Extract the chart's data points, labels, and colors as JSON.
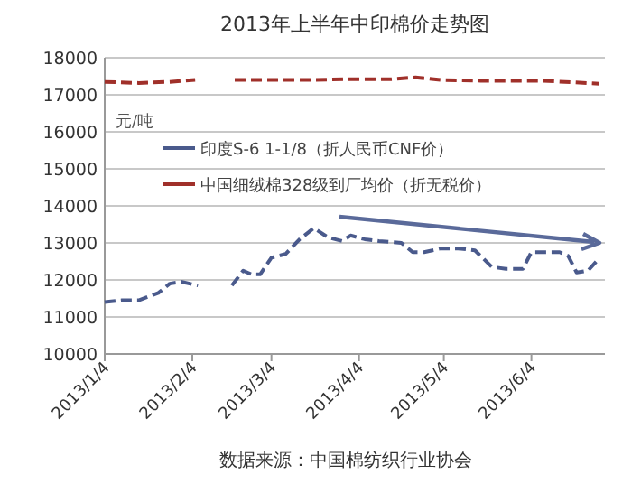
{
  "chart_data": {
    "type": "line",
    "title": "2013年上半年中印棉价走势图",
    "ylabel": "元/吨",
    "annotations": [
      "数据来源：中国棉纺织行业协会"
    ],
    "xlim": [
      "2013-01-04",
      "2013-06-30"
    ],
    "xticks": [
      {
        "value": "2013-01-04",
        "label": "2013/1/4"
      },
      {
        "value": "2013-02-04",
        "label": "2013/2/4"
      },
      {
        "value": "2013-03-04",
        "label": "2013/3/4"
      },
      {
        "value": "2013-04-04",
        "label": "2013/4/4"
      },
      {
        "value": "2013-05-04",
        "label": "2013/5/4"
      },
      {
        "value": "2013-06-04",
        "label": "2013/6/4"
      }
    ],
    "ylim": [
      10000,
      18000
    ],
    "yticks": [
      10000,
      11000,
      12000,
      13000,
      14000,
      15000,
      16000,
      17000,
      18000
    ],
    "grid": "y",
    "legend": "top left",
    "line_style": "dashed",
    "series": [
      {
        "name": "印度S-6 1-1/8（折人民币CNF价）",
        "color": "#4a5a8c",
        "x": [
          "2013-01-04",
          "2013-01-10",
          "2013-01-16",
          "2013-01-23",
          "2013-01-27",
          "2013-01-31",
          "2013-02-06",
          "2013-02-12",
          "2013-02-18",
          "2013-02-22",
          "2013-02-25",
          "2013-02-28",
          "2013-03-04",
          "2013-03-09",
          "2013-03-14",
          "2013-03-19",
          "2013-03-24",
          "2013-03-29",
          "2013-04-01",
          "2013-04-06",
          "2013-04-11",
          "2013-04-19",
          "2013-04-23",
          "2013-04-27",
          "2013-05-03",
          "2013-05-09",
          "2013-05-15",
          "2013-05-21",
          "2013-05-26",
          "2013-06-01",
          "2013-06-04",
          "2013-06-14",
          "2013-06-17",
          "2013-06-20",
          "2013-06-24",
          "2013-06-27"
        ],
        "values": [
          11400,
          11450,
          11450,
          11650,
          11900,
          11950,
          11850,
          null,
          11850,
          12250,
          12150,
          12150,
          12600,
          12700,
          13100,
          13400,
          13150,
          13050,
          13200,
          13100,
          13050,
          13000,
          12750,
          12750,
          12850,
          12850,
          12800,
          12350,
          12300,
          12300,
          12750,
          12750,
          12650,
          12200,
          12250,
          12500
        ]
      },
      {
        "name": "中国细绒棉328级到厂均价（折无税价）",
        "color": "#a0302a",
        "x": [
          "2013-01-04",
          "2013-01-16",
          "2013-01-27",
          "2013-02-05",
          "2013-02-12",
          "2013-02-19",
          "2013-03-17",
          "2013-03-30",
          "2013-04-15",
          "2013-04-24",
          "2013-05-03",
          "2013-05-17",
          "2013-06-08",
          "2013-06-28"
        ],
        "values": [
          17350,
          17320,
          17350,
          17400,
          null,
          17400,
          17400,
          17420,
          17420,
          17470,
          17400,
          17380,
          17380,
          17300
        ]
      }
    ]
  }
}
